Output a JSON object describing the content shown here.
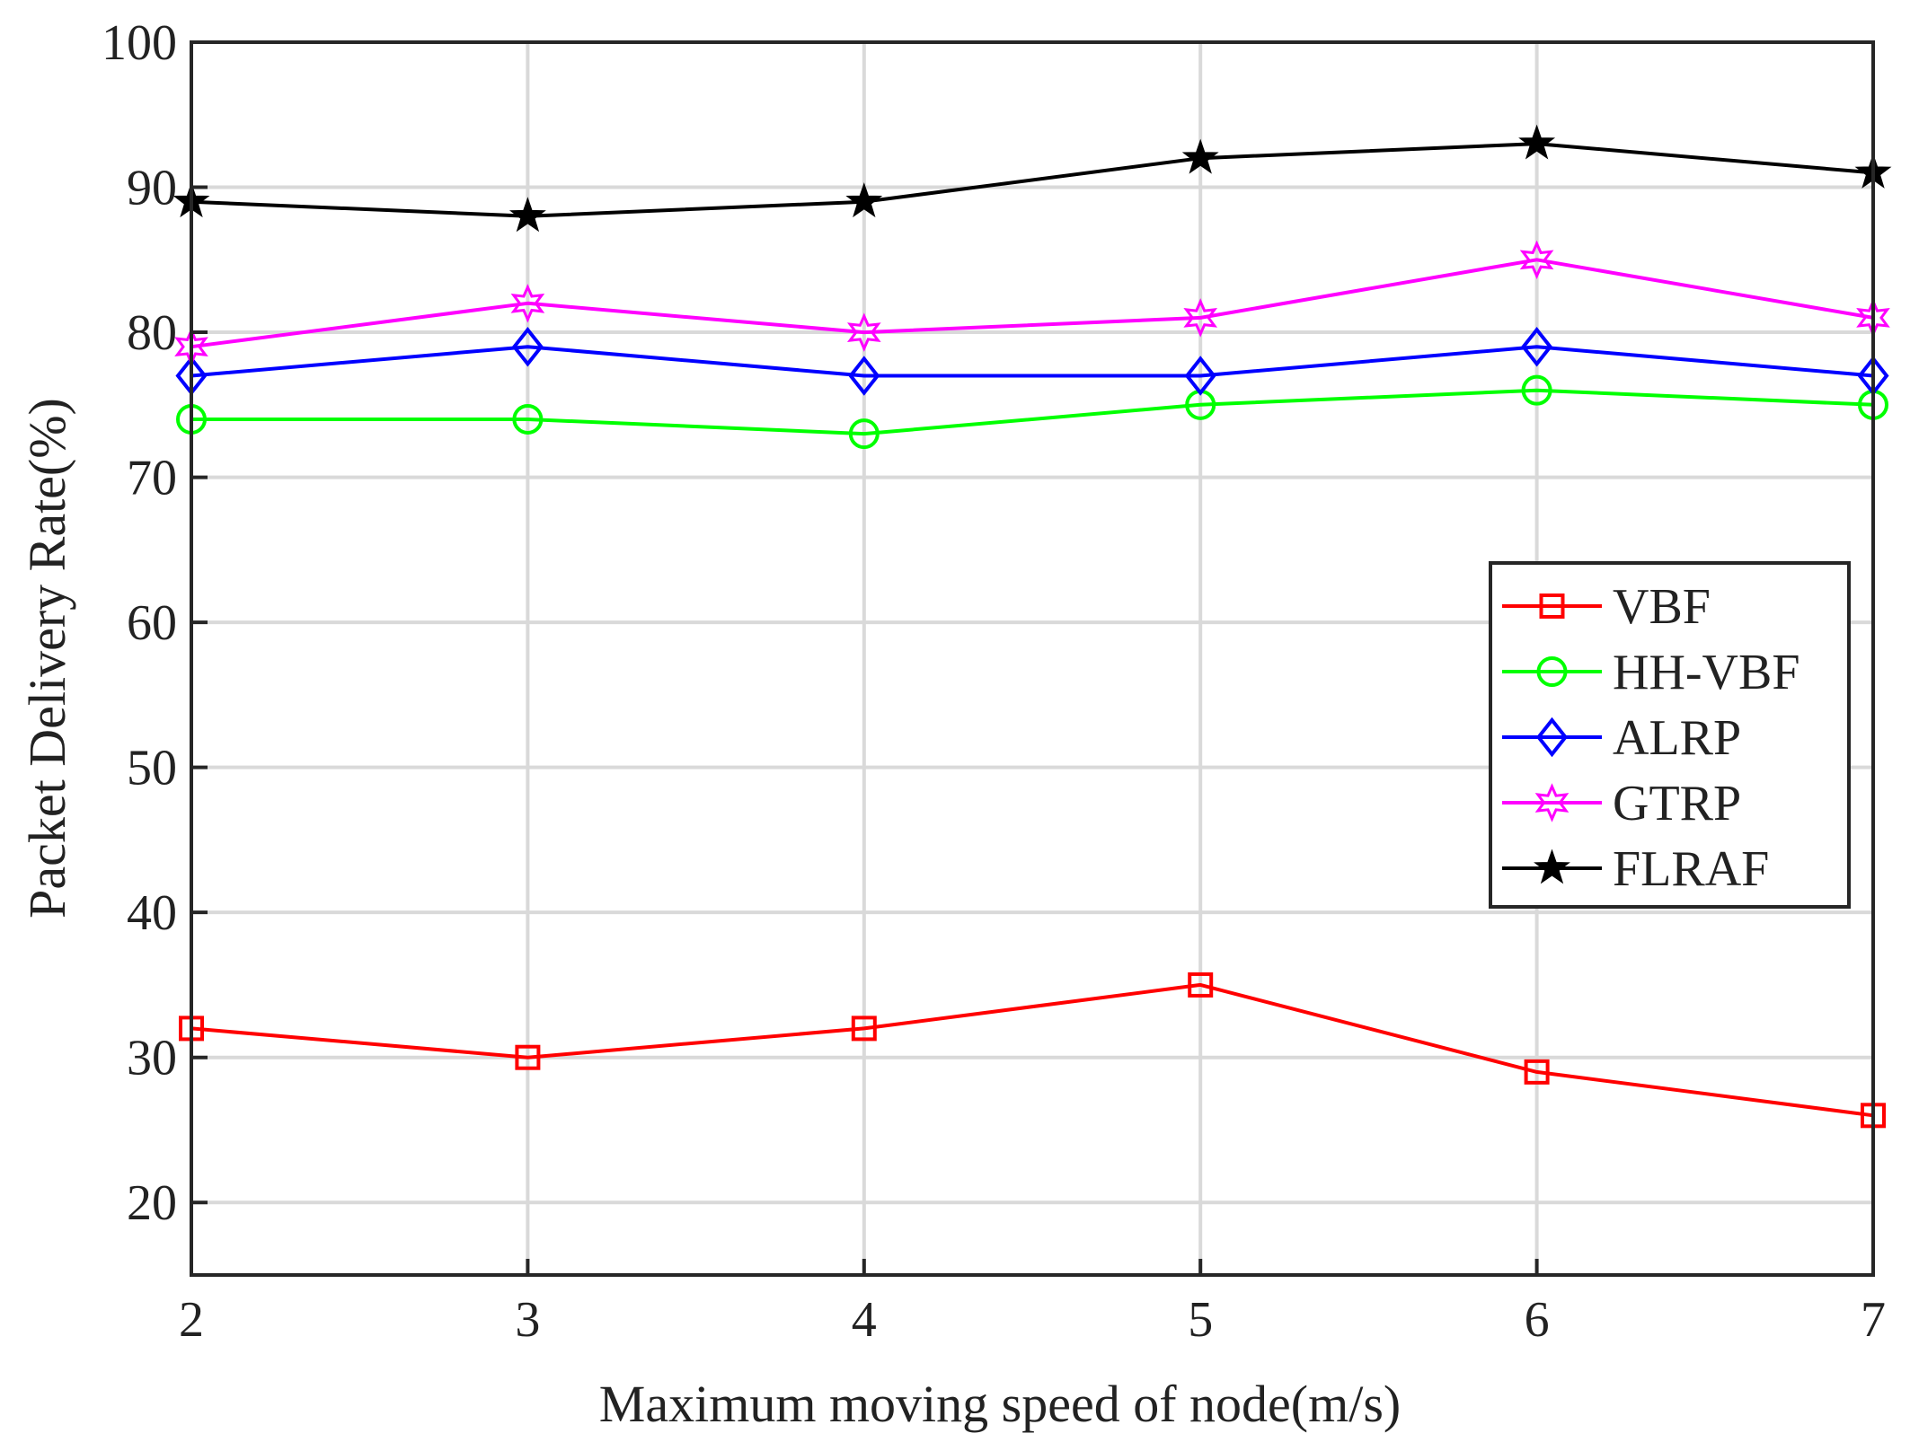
{
  "chart_data": {
    "type": "line",
    "title": "",
    "xlabel": "Maximum moving speed of node(m/s)",
    "ylabel": "Packet Delivery Rate(%)",
    "xlim": [
      2,
      7
    ],
    "ylim": [
      15,
      100
    ],
    "grid": true,
    "legend_position": "right",
    "x": [
      2,
      3,
      4,
      5,
      6,
      7
    ],
    "x_ticks": [
      "2",
      "3",
      "4",
      "5",
      "6",
      "7"
    ],
    "y_ticks": [
      20,
      30,
      40,
      50,
      60,
      70,
      80,
      90,
      100
    ],
    "y_tick_labels": [
      "20",
      "30",
      "40",
      "50",
      "60",
      "70",
      "80",
      "90",
      "100"
    ],
    "series": [
      {
        "name": "VBF",
        "color": "#ff0000",
        "marker": "square",
        "values": [
          32,
          30,
          32,
          35,
          29,
          26
        ]
      },
      {
        "name": "HH-VBF",
        "color": "#00ff00",
        "marker": "circle",
        "values": [
          74,
          74,
          73,
          75,
          76,
          75
        ]
      },
      {
        "name": "ALRP",
        "color": "#0000ff",
        "marker": "diamond",
        "values": [
          77,
          79,
          77,
          77,
          79,
          77
        ]
      },
      {
        "name": "GTRP",
        "color": "#ff00ff",
        "marker": "hexagram",
        "values": [
          79,
          82,
          80,
          81,
          85,
          81
        ]
      },
      {
        "name": "FLRAF",
        "color": "#000000",
        "marker": "pentagram",
        "values": [
          89,
          88,
          89,
          92,
          93,
          91
        ]
      }
    ]
  }
}
